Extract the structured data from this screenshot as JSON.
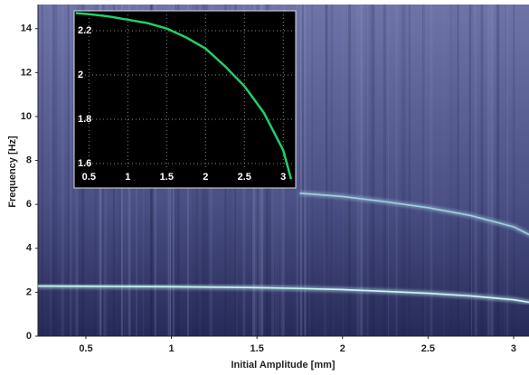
{
  "chart_data": [
    {
      "type": "line",
      "x_label": "Initial Amplitude [mm]",
      "y_label": "Frequency [Hz]",
      "x": [
        0.22,
        0.5,
        0.75,
        1,
        1.25,
        1.5,
        1.75,
        2,
        2.25,
        2.5,
        2.75,
        3,
        3.1
      ],
      "series": [
        {
          "color": "#c8f6f4",
          "values": [
            2.28,
            2.27,
            2.26,
            2.25,
            2.23,
            2.21,
            2.17,
            2.12,
            2.04,
            1.95,
            1.83,
            1.66,
            1.53
          ]
        },
        {
          "color": "#9fcfe0",
          "values": [
            null,
            null,
            null,
            null,
            null,
            null,
            6.51,
            6.36,
            6.12,
            5.85,
            5.49,
            4.98,
            4.59
          ]
        }
      ],
      "xlim": [
        0.22,
        3.09
      ],
      "ylim": [
        0,
        15.1
      ],
      "xticks": [
        0.5,
        1,
        1.5,
        2,
        2.5,
        3
      ],
      "yticks": [
        0,
        2,
        4,
        6,
        8,
        10,
        12,
        14
      ],
      "grid": false
    },
    {
      "type": "line",
      "x": [
        0.33,
        0.5,
        0.75,
        1,
        1.25,
        1.5,
        1.75,
        2,
        2.25,
        2.5,
        2.75,
        3,
        3.1
      ],
      "series": [
        {
          "color": "#1fcf6a",
          "values": [
            2.28,
            2.275,
            2.265,
            2.25,
            2.235,
            2.21,
            2.17,
            2.12,
            2.04,
            1.95,
            1.83,
            1.66,
            1.53
          ]
        }
      ],
      "xlim": [
        0.31,
        3.16
      ],
      "ylim": [
        1.49,
        2.29
      ],
      "xticks": [
        0.5,
        1,
        1.5,
        2,
        2.5,
        3
      ],
      "yticks": [
        1.6,
        1.8,
        2,
        2.2
      ],
      "grid": true
    }
  ]
}
